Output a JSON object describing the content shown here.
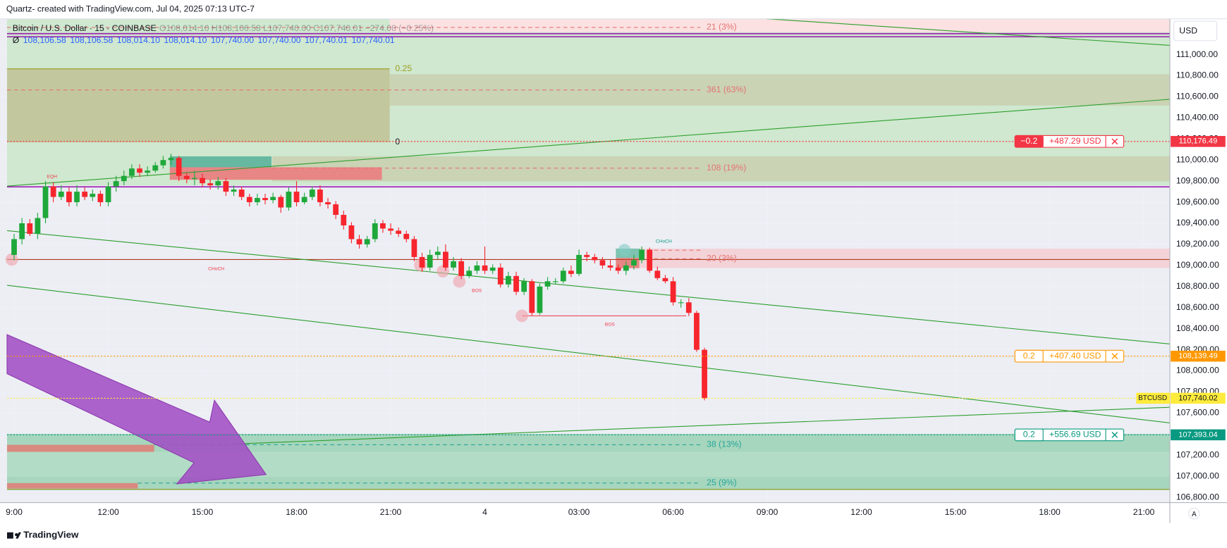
{
  "header": {
    "caption": "Quartz- created with TradingView.com, Jul 04, 2025 07:13 UTC-7",
    "symbol": "Bitcoin / U.S. Dollar · 15 · COINBASE",
    "ohlc": "O108,014.10 H108,106.58 L107,740.00 C107,740.01 −274.08 (−0.25%)",
    "indicator_symbol": "Ø",
    "indicator_values": [
      "108,106.58",
      "108,106.58",
      "108,014.10",
      "108,014.10",
      "107,740.00",
      "107,740.00",
      "107,740.01",
      "107,740.01"
    ],
    "currency": "USD",
    "auto_button": "A"
  },
  "footer": {
    "brand": "TradingView"
  },
  "annotations": [
    "21 (3%)",
    "361 (63%)",
    "108 (19%)",
    "20 (3%)",
    "38 (13%)",
    "25 (9%)",
    "0.25",
    "0",
    "EQH",
    "CHoCH",
    "CHoCH",
    "BOS",
    "BOS"
  ],
  "chart_data": {
    "type": "candlestick",
    "up_color": "#1ea83a",
    "down_color": "#f7252d",
    "x": [
      9,
      9.25,
      9.5,
      9.75,
      10,
      10.25,
      10.5,
      10.75,
      11,
      11.25,
      11.5,
      11.75,
      12,
      12.25,
      12.5,
      12.75,
      13,
      13.25,
      13.5,
      13.75,
      14,
      14.25,
      14.5,
      14.75,
      15,
      15.25,
      15.5,
      15.75,
      16,
      16.25,
      16.5,
      16.75,
      17,
      17.25,
      17.5,
      17.75,
      18,
      18.25,
      18.5,
      18.75,
      19,
      19.25,
      19.5,
      19.75,
      20,
      20.25,
      20.5,
      20.75,
      21,
      21.25,
      21.5,
      21.75,
      22,
      22.25,
      22.5,
      22.75,
      23,
      23.25,
      23.5,
      23.75,
      24,
      24.25,
      24.5,
      24.75,
      25,
      25.25,
      25.5,
      25.75,
      26,
      26.25,
      26.5,
      26.75,
      27,
      27.25,
      27.5,
      27.75,
      28,
      28.25,
      28.5,
      28.75,
      29,
      29.25,
      29.5,
      29.75,
      30,
      30.25,
      30.5,
      30.75,
      31
    ],
    "open": [
      109100,
      109250,
      109400,
      109300,
      109450,
      109750,
      109650,
      109700,
      109600,
      109700,
      109650,
      109680,
      109600,
      109750,
      109800,
      109850,
      109920,
      109880,
      109900,
      109950,
      110000,
      110020,
      109850,
      109820,
      109830,
      109780,
      109760,
      109800,
      109700,
      109720,
      109650,
      109600,
      109640,
      109620,
      109650,
      109550,
      109700,
      109600,
      109650,
      109720,
      109600,
      109580,
      109480,
      109380,
      109250,
      109200,
      109250,
      109400,
      109350,
      109330,
      109300,
      109250,
      109080,
      108980,
      109100,
      109130,
      108980,
      109040,
      108900,
      108950,
      109000,
      108950,
      108980,
      108820,
      108900,
      108750,
      108850,
      108550,
      108800,
      108850,
      108850,
      108950,
      108920,
      109100,
      109080,
      109050,
      109000,
      108980,
      108950,
      109000,
      109050,
      109150,
      108950,
      108880,
      108850,
      108650,
      108650,
      108550,
      108200
    ],
    "high": [
      109300,
      109450,
      109440,
      109500,
      109800,
      109790,
      109760,
      109740,
      109760,
      109740,
      109720,
      109710,
      109790,
      109850,
      109900,
      109960,
      109960,
      109940,
      109980,
      110040,
      110060,
      110040,
      109880,
      109900,
      109870,
      109820,
      109840,
      109830,
      109760,
      109750,
      109680,
      109680,
      109680,
      109690,
      109670,
      109740,
      109800,
      109690,
      109750,
      109760,
      109640,
      109610,
      109520,
      109410,
      109290,
      109280,
      109440,
      109430,
      109400,
      109360,
      109330,
      109280,
      109120,
      109150,
      109180,
      109200,
      109080,
      109070,
      108990,
      109040,
      109180,
      109010,
      109020,
      108940,
      108940,
      108880,
      108870,
      108830,
      108890,
      108880,
      108980,
      109000,
      109150,
      109130,
      109110,
      109080,
      109060,
      109010,
      109040,
      109100,
      109180,
      109170,
      108990,
      108910,
      108890,
      108680,
      108690,
      108570,
      108220
    ],
    "low": [
      109050,
      109200,
      109280,
      109250,
      109400,
      109600,
      109620,
      109560,
      109560,
      109620,
      109610,
      109560,
      109560,
      109700,
      109760,
      109820,
      109840,
      109850,
      109880,
      109920,
      109950,
      109800,
      109780,
      109760,
      109740,
      109720,
      109720,
      109660,
      109660,
      109620,
      109560,
      109570,
      109580,
      109590,
      109500,
      109520,
      109560,
      109580,
      109620,
      109560,
      109540,
      109440,
      109340,
      109210,
      109160,
      109170,
      109220,
      109310,
      109290,
      109270,
      109220,
      109040,
      108940,
      108950,
      109060,
      108950,
      108950,
      108870,
      108880,
      108920,
      108920,
      108920,
      108790,
      108790,
      108720,
      108720,
      108520,
      108530,
      108770,
      108820,
      108830,
      108890,
      108900,
      109040,
      109020,
      108970,
      108950,
      108920,
      108910,
      108960,
      109020,
      108930,
      108860,
      108830,
      108620,
      108600,
      108520,
      108180,
      107720
    ],
    "close": [
      109250,
      109400,
      109300,
      109450,
      109750,
      109650,
      109700,
      109600,
      109700,
      109650,
      109680,
      109600,
      109750,
      109800,
      109850,
      109920,
      109880,
      109900,
      109950,
      110000,
      110020,
      109850,
      109820,
      109830,
      109780,
      109760,
      109800,
      109700,
      109720,
      109650,
      109600,
      109640,
      109620,
      109650,
      109550,
      109700,
      109600,
      109650,
      109720,
      109600,
      109580,
      109480,
      109380,
      109250,
      109200,
      109250,
      109400,
      109350,
      109330,
      109300,
      109250,
      109080,
      108980,
      109100,
      109130,
      108980,
      109040,
      108900,
      108950,
      109000,
      108950,
      108980,
      108820,
      108900,
      108750,
      108850,
      108550,
      108800,
      108850,
      108850,
      108950,
      108920,
      109100,
      109080,
      109050,
      109000,
      108980,
      108950,
      109000,
      109050,
      109150,
      108950,
      108880,
      108850,
      108650,
      108650,
      108550,
      108200,
      107740.02
    ],
    "xlim": [
      8.55,
      45.83
    ],
    "xticks": [
      {
        "value": 9,
        "label": "9:00"
      },
      {
        "value": 12,
        "label": "12:00"
      },
      {
        "value": 15,
        "label": "15:00"
      },
      {
        "value": 18,
        "label": "18:00"
      },
      {
        "value": 21,
        "label": "21:00"
      },
      {
        "value": 24,
        "label": "4"
      },
      {
        "value": 27,
        "label": "03:00"
      },
      {
        "value": 30,
        "label": "06:00"
      },
      {
        "value": 33,
        "label": "09:00"
      },
      {
        "value": 36,
        "label": "12:00"
      },
      {
        "value": 39,
        "label": "15:00"
      },
      {
        "value": 42,
        "label": "18:00"
      },
      {
        "value": 45,
        "label": "21:00"
      }
    ],
    "ylim": [
      106750,
      111340
    ],
    "yticks": [
      {
        "value": 106800,
        "label": "106,800.00"
      },
      {
        "value": 107000,
        "label": "107,000.00"
      },
      {
        "value": 107200,
        "label": "107,200.00"
      },
      {
        "value": 107400,
        "label": "107,400.00"
      },
      {
        "value": 107600,
        "label": "107,600.00"
      },
      {
        "value": 107800,
        "label": "107,800.00"
      },
      {
        "value": 108000,
        "label": "108,000.00"
      },
      {
        "value": 108200,
        "label": "108,200.00"
      },
      {
        "value": 108400,
        "label": "108,400.00"
      },
      {
        "value": 108600,
        "label": "108,600.00"
      },
      {
        "value": 108800,
        "label": "108,800.00"
      },
      {
        "value": 109000,
        "label": "109,000.00"
      },
      {
        "value": 109200,
        "label": "109,200.00"
      },
      {
        "value": 109400,
        "label": "109,400.00"
      },
      {
        "value": 109600,
        "label": "109,600.00"
      },
      {
        "value": 109800,
        "label": "109,800.00"
      },
      {
        "value": 110000,
        "label": "110,000.00"
      },
      {
        "value": 110200,
        "label": "110,200.00"
      },
      {
        "value": 110400,
        "label": "110,400.00"
      },
      {
        "value": 110600,
        "label": "110,600.00"
      },
      {
        "value": 110800,
        "label": "110,800.00"
      },
      {
        "value": 111000,
        "label": "111,000.00"
      }
    ],
    "grid": true,
    "price_lines": [
      {
        "value": 110176.49,
        "label": "110,176.49",
        "color": "#f23645",
        "text_color": "#ffffff",
        "qty": "−0.2",
        "qty_filled": true,
        "pnl": "+487.29 USD"
      },
      {
        "value": 108139.49,
        "label": "108,139.49",
        "color": "#ff9800",
        "text_color": "#ffffff",
        "qty": "0.2",
        "qty_filled": false,
        "pnl": "+407.40 USD"
      },
      {
        "value": 107740.02,
        "label": "107,740.02",
        "color": "#ffeb3b",
        "text_color": "#131722",
        "name": "BTCUSD"
      },
      {
        "value": 107393.04,
        "label": "107,393.04",
        "color": "#089981",
        "text_color": "#ffffff",
        "qty": "0.2",
        "qty_filled": false,
        "pnl": "+556.69 USD"
      }
    ]
  }
}
